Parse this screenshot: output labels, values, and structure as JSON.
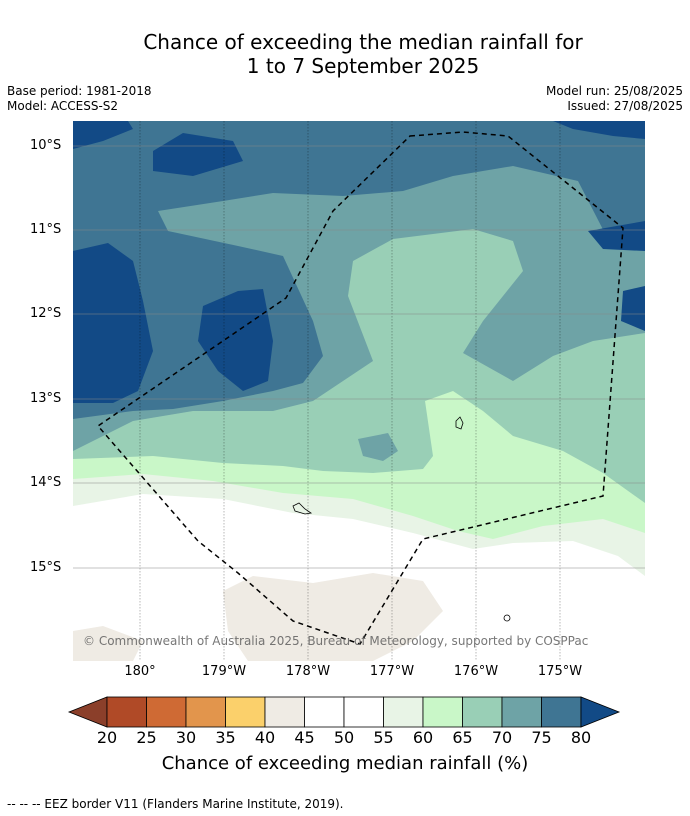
{
  "title_line1": "Chance of exceeding the median rainfall for",
  "title_line2": "1 to 7 September 2025",
  "base_period": "Base period: 1981-2018",
  "model": "Model: ACCESS-S2",
  "model_run": "Model run: 25/08/2025",
  "issued": "Issued: 27/08/2025",
  "copyright": "© Commonwealth of Australia 2025, Bureau of Meteorology, supported by COSPPac",
  "lon_labels": [
    "180°",
    "179°W",
    "178°W",
    "177°W",
    "176°W",
    "175°W"
  ],
  "lat_labels": [
    "10°S",
    "11°S",
    "12°S",
    "13°S",
    "14°S",
    "15°S"
  ],
  "colorbar": {
    "ticks": [
      "20",
      "25",
      "30",
      "35",
      "40",
      "45",
      "50",
      "55",
      "60",
      "65",
      "70",
      "75",
      "80"
    ],
    "colors": [
      "#b04a27",
      "#cf6a34",
      "#e2954c",
      "#fbd06b",
      "#efebe4",
      "#ffffff",
      "#ffffff",
      "#e8f4e6",
      "#c9f7c8",
      "#99cfb6",
      "#6ea3a6",
      "#3f7593"
    ],
    "under_color": "#8b3f2a",
    "over_color": "#124a86",
    "label": "Chance of exceeding median rainfall (%)"
  },
  "footer": "--  --  -- EEZ border V11 (Flanders Marine Institute, 2019)."
}
